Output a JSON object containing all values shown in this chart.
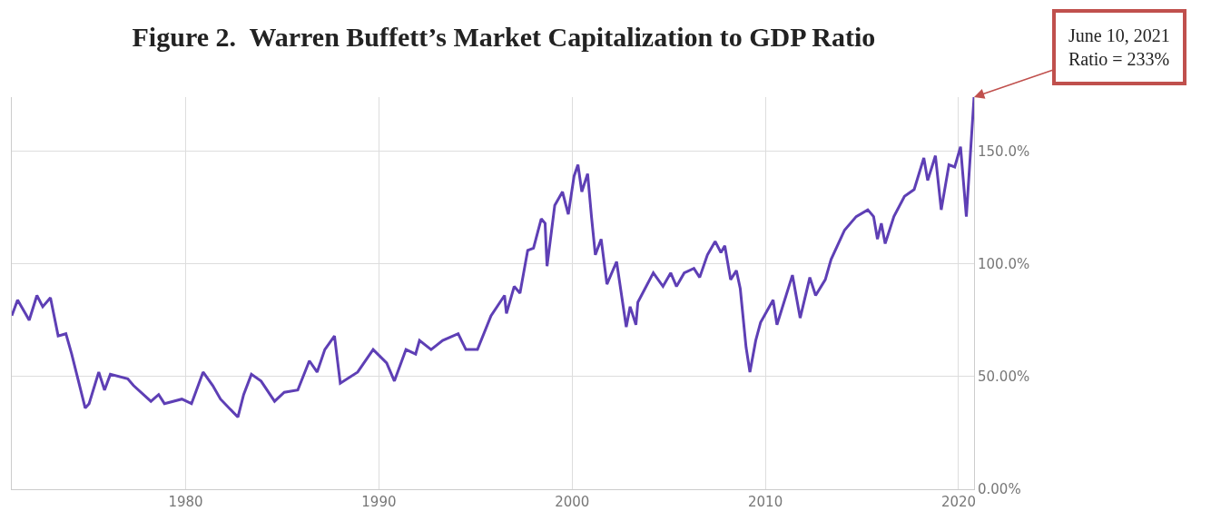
{
  "chart_data": {
    "type": "line",
    "title": "Figure 2.  Warren Buffett’s Market Capitalization to GDP Ratio",
    "annotations": [
      "June 10, 2021\nRatio = 233%"
    ],
    "x": [
      1971.0,
      1971.3,
      1971.7,
      1971.9,
      1972.3,
      1972.6,
      1973.0,
      1973.4,
      1973.8,
      1974.1,
      1974.8,
      1975.0,
      1975.5,
      1975.8,
      1976.1,
      1977.0,
      1977.3,
      1978.2,
      1978.6,
      1978.9,
      1979.8,
      1980.3,
      1980.9,
      1981.4,
      1981.8,
      1982.7,
      1983.0,
      1983.4,
      1983.9,
      1984.6,
      1985.1,
      1985.8,
      1986.4,
      1986.8,
      1987.2,
      1987.7,
      1988.0,
      1988.9,
      1989.7,
      1990.4,
      1990.8,
      1991.4,
      1991.9,
      1992.1,
      1992.7,
      1993.3,
      1994.1,
      1994.5,
      1995.1,
      1995.8,
      1996.5,
      1996.6,
      1997.0,
      1997.3,
      1997.7,
      1998.0,
      1998.4,
      1998.6,
      1998.7,
      1999.1,
      1999.5,
      1999.8,
      2000.1,
      2000.3,
      2000.5,
      2000.8,
      2001.0,
      2001.2,
      2001.5,
      2001.8,
      2002.3,
      2002.8,
      2003.0,
      2003.3,
      2003.4,
      2004.2,
      2004.7,
      2005.1,
      2005.4,
      2005.8,
      2006.3,
      2006.6,
      2007.0,
      2007.4,
      2007.7,
      2007.9,
      2008.2,
      2008.5,
      2008.7,
      2009.0,
      2009.2,
      2009.5,
      2009.75,
      2010.4,
      2010.6,
      2011.4,
      2011.8,
      2012.3,
      2012.6,
      2013.1,
      2013.4,
      2014.1,
      2014.7,
      2015.3,
      2015.6,
      2015.8,
      2016.0,
      2016.2,
      2016.65,
      2017.2,
      2017.7,
      2018.2,
      2018.4,
      2018.8,
      2019.1,
      2019.5,
      2019.8,
      2020.1,
      2020.4,
      2020.8
    ],
    "series": [
      {
        "color": "#5e3fb5",
        "values": [
          77,
          84,
          78,
          75,
          86,
          81,
          85,
          68,
          69,
          60,
          36,
          38,
          52,
          44,
          51,
          49,
          46,
          39,
          42,
          38,
          40,
          38,
          52,
          46,
          40,
          32,
          42,
          51,
          48,
          39,
          43,
          44,
          57,
          52,
          62,
          68,
          47,
          52,
          62,
          56,
          48,
          62,
          60,
          66,
          62,
          66,
          69,
          62,
          62,
          77,
          86,
          78,
          90,
          87,
          106,
          107,
          120,
          118,
          99,
          126,
          132,
          122,
          139,
          144,
          132,
          140,
          121,
          104,
          111,
          91,
          101,
          72,
          81,
          73,
          83,
          96,
          90,
          96,
          90,
          96,
          98,
          94,
          104,
          110,
          105,
          108,
          93,
          97,
          89,
          63,
          52,
          66,
          74,
          84,
          73,
          95,
          76,
          94,
          86,
          93,
          102,
          115,
          121,
          124,
          121,
          111,
          118,
          109,
          121,
          130,
          133,
          147,
          137,
          148,
          124,
          144,
          143,
          152,
          121,
          174
        ]
      }
    ],
    "xlim": [
      1971.0,
      2020.8
    ],
    "xticks": [
      1980,
      1990,
      2000,
      2010,
      2020
    ],
    "ylim": [
      0,
      174
    ],
    "yticks": [
      {
        "value": 0,
        "label": "0.00%"
      },
      {
        "value": 50,
        "label": "50.00%"
      },
      {
        "value": 100,
        "label": "100.0%"
      },
      {
        "value": 150,
        "label": "150.0%"
      }
    ],
    "grid": true,
    "marker": "none",
    "line_style": "solid"
  }
}
